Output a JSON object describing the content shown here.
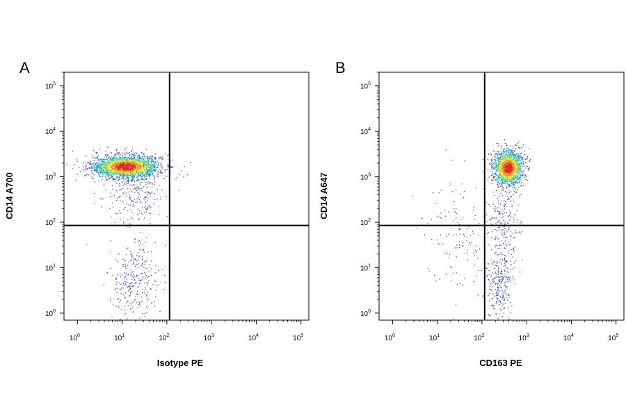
{
  "chart_data": [
    {
      "type": "scatter",
      "panel_label": "A",
      "xlabel": "Isotype PE",
      "ylabel": "CD14 A700",
      "x_scale": "log",
      "y_scale": "log",
      "xlim": [
        0.5,
        150000
      ],
      "ylim": [
        0.7,
        200000
      ],
      "xticks": [
        {
          "base": "10",
          "exp": "0"
        },
        {
          "base": "10",
          "exp": "1"
        },
        {
          "base": "10",
          "exp": "2"
        },
        {
          "base": "10",
          "exp": "3"
        },
        {
          "base": "10",
          "exp": "4"
        },
        {
          "base": "10",
          "exp": "5"
        }
      ],
      "yticks": [
        {
          "base": "10",
          "exp": "0"
        },
        {
          "base": "10",
          "exp": "1"
        },
        {
          "base": "10",
          "exp": "2"
        },
        {
          "base": "10",
          "exp": "3"
        },
        {
          "base": "10",
          "exp": "4"
        },
        {
          "base": "10",
          "exp": "5"
        }
      ],
      "gate": {
        "x": 115,
        "y": 85
      },
      "populations": [
        {
          "cx": 12,
          "cy": 1700,
          "sdx": 0.38,
          "sdy": 0.13,
          "n": 2200,
          "color": "density"
        },
        {
          "cx": 20,
          "cy": 400,
          "sdx": 0.35,
          "sdy": 0.35,
          "n": 240,
          "color": "#3a4cc0"
        },
        {
          "cx": 18,
          "cy": 5,
          "sdx": 0.28,
          "sdy": 0.45,
          "n": 300,
          "color": "#3a4cc0"
        }
      ]
    },
    {
      "type": "scatter",
      "panel_label": "B",
      "xlabel": "CD163 PE",
      "ylabel": "CD14 A647",
      "x_scale": "log",
      "y_scale": "log",
      "xlim": [
        0.5,
        150000
      ],
      "ylim": [
        0.7,
        200000
      ],
      "xticks": [
        {
          "base": "10",
          "exp": "0"
        },
        {
          "base": "10",
          "exp": "1"
        },
        {
          "base": "10",
          "exp": "2"
        },
        {
          "base": "10",
          "exp": "3"
        },
        {
          "base": "10",
          "exp": "4"
        },
        {
          "base": "10",
          "exp": "5"
        }
      ],
      "yticks": [
        {
          "base": "10",
          "exp": "0"
        },
        {
          "base": "10",
          "exp": "1"
        },
        {
          "base": "10",
          "exp": "2"
        },
        {
          "base": "10",
          "exp": "3"
        },
        {
          "base": "10",
          "exp": "4"
        },
        {
          "base": "10",
          "exp": "5"
        }
      ],
      "gate": {
        "x": 115,
        "y": 85
      },
      "populations": [
        {
          "cx": 380,
          "cy": 1600,
          "sdx": 0.17,
          "sdy": 0.2,
          "n": 1500,
          "color": "density"
        },
        {
          "cx": 300,
          "cy": 100,
          "sdx": 0.18,
          "sdy": 0.35,
          "n": 180,
          "color": "#3a4cc0"
        },
        {
          "cx": 250,
          "cy": 6,
          "sdx": 0.15,
          "sdy": 0.4,
          "n": 280,
          "color": "#3a4cc0"
        },
        {
          "cx": 30,
          "cy": 40,
          "sdx": 0.4,
          "sdy": 0.7,
          "n": 140,
          "color": "#3a4cc0"
        }
      ]
    }
  ]
}
